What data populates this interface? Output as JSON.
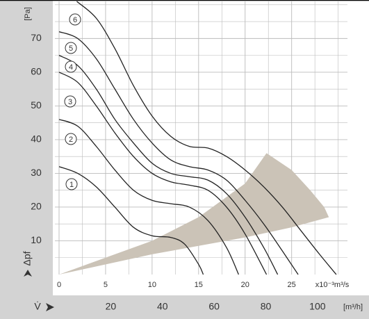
{
  "chart_data": {
    "type": "line",
    "ylabel": "Δpf",
    "yunit": "[Pa]",
    "xunit": "x10⁻³m³/s",
    "x2label": "V̇",
    "x2unit": "[m³/h]",
    "xlim": [
      0,
      31
    ],
    "xticks": [
      0,
      5,
      10,
      15,
      20,
      25
    ],
    "xminor": [
      2.5,
      7.5,
      12.5,
      17.5,
      22.5,
      27.5,
      30
    ],
    "x2lim": [
      0,
      111.6
    ],
    "x2ticks": [
      20,
      40,
      60,
      80,
      100
    ],
    "ylim": [
      0,
      81
    ],
    "yticks": [
      10,
      20,
      30,
      40,
      50,
      60,
      70
    ],
    "yminor": [
      5,
      15,
      25,
      35,
      45,
      55,
      65,
      75,
      80
    ],
    "grid": true,
    "line_color": "#222222",
    "region": {
      "color": "#cbc3b7",
      "x": [
        0,
        10,
        20,
        25,
        29,
        28.5,
        27,
        25,
        22.3,
        20,
        15,
        10,
        0
      ],
      "y": [
        0,
        6,
        11,
        14,
        17,
        20,
        25,
        31,
        36,
        27,
        17,
        10,
        0
      ]
    },
    "series": [
      {
        "name": "1",
        "x": [
          0,
          2,
          4,
          6,
          8,
          10,
          12,
          13.5,
          15,
          15.5
        ],
        "values": [
          32,
          30,
          26,
          20,
          14,
          11.5,
          11,
          9,
          3,
          0
        ]
      },
      {
        "name": "2",
        "x": [
          0,
          2,
          4,
          6,
          8,
          10,
          12,
          14,
          16,
          18,
          19.3
        ],
        "values": [
          46,
          44,
          38,
          31,
          25,
          22,
          21,
          20,
          16,
          8,
          0
        ]
      },
      {
        "name": "3",
        "x": [
          0,
          2,
          4,
          6,
          8,
          10,
          12,
          14,
          16,
          18,
          20,
          22.3
        ],
        "values": [
          60,
          57,
          50,
          42,
          35,
          30,
          27.5,
          26.5,
          25,
          20,
          12,
          0
        ]
      },
      {
        "name": "4",
        "x": [
          0,
          2,
          4,
          6,
          8,
          10,
          12,
          14,
          16,
          18,
          20,
          22,
          23.5
        ],
        "values": [
          65,
          62,
          55,
          46,
          39,
          33,
          30,
          29,
          28,
          24,
          17,
          8,
          0
        ]
      },
      {
        "name": "5",
        "x": [
          0,
          2,
          4,
          6,
          8,
          10,
          12,
          14,
          16,
          18,
          20,
          22,
          24,
          25.7
        ],
        "values": [
          72,
          70,
          64,
          55,
          46,
          39,
          34,
          32,
          31,
          28,
          22,
          15,
          7,
          0
        ]
      },
      {
        "name": "6",
        "x": [
          1.9,
          4,
          6,
          8,
          10,
          12,
          14,
          16,
          18,
          20,
          22,
          24,
          26,
          28,
          29.8
        ],
        "values": [
          81,
          76,
          67,
          56,
          47,
          41,
          38,
          37.5,
          35,
          31,
          26,
          20,
          13,
          6,
          0
        ]
      }
    ]
  }
}
